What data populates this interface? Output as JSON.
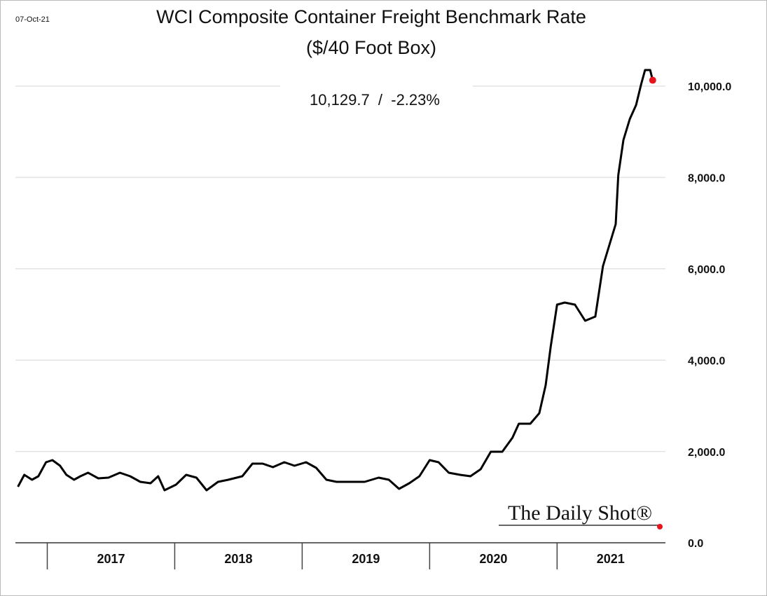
{
  "chart_data": {
    "type": "line",
    "title": "WCI Composite Container Freight Benchmark Rate",
    "subtitle": "($/40 Foot Box)",
    "date": "07-Oct-21",
    "annotation": "10,129.7  /  -2.23%",
    "source": "The Daily Shot®",
    "x": [
      2016.77,
      2016.82,
      2016.88,
      2016.93,
      2016.99,
      2017.04,
      2017.1,
      2017.15,
      2017.21,
      2017.26,
      2017.32,
      2017.4,
      2017.48,
      2017.57,
      2017.65,
      2017.73,
      2017.81,
      2017.87,
      2017.92,
      2018.01,
      2018.09,
      2018.17,
      2018.25,
      2018.34,
      2018.42,
      2018.53,
      2018.61,
      2018.69,
      2018.77,
      2018.86,
      2018.94,
      2019.03,
      2019.11,
      2019.19,
      2019.27,
      2019.38,
      2019.49,
      2019.6,
      2019.68,
      2019.76,
      2019.84,
      2019.92,
      2020.0,
      2020.07,
      2020.15,
      2020.24,
      2020.32,
      2020.4,
      2020.48,
      2020.57,
      2020.65,
      2020.7,
      2020.79,
      2020.86,
      2020.91,
      2020.95,
      2021.0,
      2021.06,
      2021.14,
      2021.22,
      2021.3,
      2021.36,
      2021.41,
      2021.46,
      2021.48,
      2021.52,
      2021.57,
      2021.62,
      2021.66,
      2021.69,
      2021.73,
      2021.75
    ],
    "series": [
      {
        "name": "WCI Composite",
        "color": "#000000",
        "values": [
          1227,
          1488,
          1380,
          1457,
          1764,
          1810,
          1687,
          1488,
          1380,
          1457,
          1534,
          1411,
          1426,
          1534,
          1457,
          1334,
          1304,
          1457,
          1150,
          1273,
          1488,
          1426,
          1150,
          1334,
          1380,
          1457,
          1733,
          1733,
          1656,
          1764,
          1687,
          1764,
          1641,
          1380,
          1334,
          1334,
          1334,
          1426,
          1380,
          1181,
          1304,
          1457,
          1810,
          1764,
          1534,
          1488,
          1457,
          1610,
          1994,
          1994,
          2301,
          2607,
          2607,
          2837,
          3450,
          4294,
          5215,
          5261,
          5215,
          4862,
          4954,
          6058,
          6518,
          6979,
          8052,
          8819,
          9279,
          9586,
          10046,
          10353,
          10353,
          10129.7
        ]
      }
    ],
    "last_point_color": "#e8141c",
    "xlim": [
      2016.75,
      2021.85
    ],
    "xticks": [
      {
        "value": 2017.5,
        "label": "2017"
      },
      {
        "value": 2018.5,
        "label": "2018"
      },
      {
        "value": 2019.5,
        "label": "2019"
      },
      {
        "value": 2020.5,
        "label": "2020"
      },
      {
        "value": 2021.42,
        "label": "2021"
      }
    ],
    "x_separators": [
      2017,
      2018,
      2019,
      2020,
      2021
    ],
    "ylim": [
      0,
      10000
    ],
    "yticks": [
      {
        "value": 0,
        "label": "0.0"
      },
      {
        "value": 2000,
        "label": "2,000.0"
      },
      {
        "value": 4000,
        "label": "4,000.0"
      },
      {
        "value": 6000,
        "label": "6,000.0"
      },
      {
        "value": 8000,
        "label": "8,000.0"
      },
      {
        "value": 10000,
        "label": "10,000.0"
      }
    ],
    "grid": true
  }
}
